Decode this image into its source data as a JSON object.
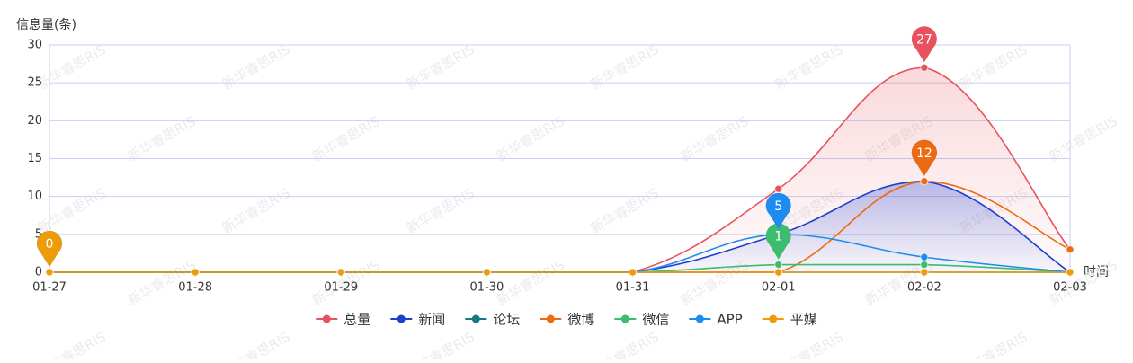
{
  "chart_data": {
    "type": "line",
    "smooth": true,
    "y_axis_label": "信息量(条)",
    "x_axis_label": "时间",
    "watermark": "新华睿思RIS",
    "categories": [
      "01-27",
      "01-28",
      "01-29",
      "01-30",
      "01-31",
      "02-01",
      "02-02",
      "02-03"
    ],
    "ylim": [
      0,
      30
    ],
    "yticks": [
      0,
      5,
      10,
      15,
      20,
      25,
      30
    ],
    "grid": true,
    "legend": "bottom",
    "series": [
      {
        "name": "总量",
        "color": "#e8525f",
        "area": true,
        "values": [
          0,
          0,
          0,
          0,
          0,
          11,
          27,
          3
        ]
      },
      {
        "name": "新闻",
        "color": "#1d3fd0",
        "area": true,
        "values": [
          0,
          0,
          0,
          0,
          0,
          5,
          12,
          0
        ]
      },
      {
        "name": "论坛",
        "color": "#127a80",
        "values": [
          0,
          0,
          0,
          0,
          0,
          0,
          0,
          0
        ]
      },
      {
        "name": "微博",
        "color": "#ec6a10",
        "values": [
          0,
          0,
          0,
          0,
          0,
          0,
          12,
          3
        ]
      },
      {
        "name": "微信",
        "color": "#3cbc6f",
        "values": [
          0,
          0,
          0,
          0,
          0,
          1,
          1,
          0
        ]
      },
      {
        "name": "APP",
        "color": "#1b8df0",
        "values": [
          0,
          0,
          0,
          0,
          0,
          5,
          2,
          0
        ]
      },
      {
        "name": "平媒",
        "color": "#ee9b0a",
        "values": [
          0,
          0,
          0,
          0,
          0,
          0,
          0,
          0
        ]
      }
    ]
  }
}
